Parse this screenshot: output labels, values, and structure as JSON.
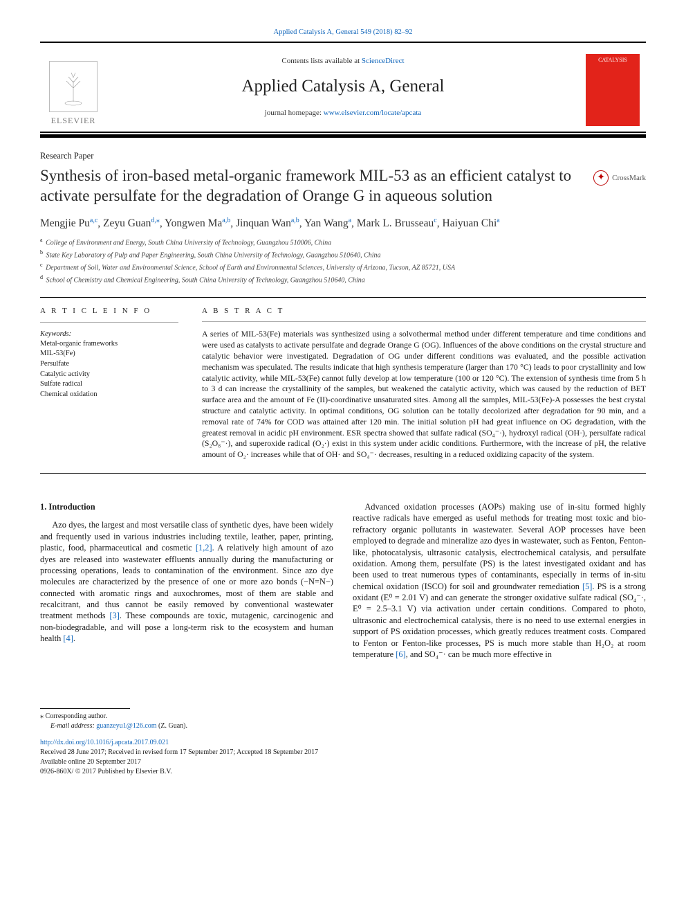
{
  "header": {
    "citation": "Applied Catalysis A, General 549 (2018) 82–92",
    "contents_prefix": "Contents lists available at ",
    "contents_link": "ScienceDirect",
    "journal": "Applied Catalysis A, General",
    "homepage_prefix": "journal homepage: ",
    "homepage_link": "www.elsevier.com/locate/apcata",
    "publisher_word": "ELSEVIER",
    "cover_text": "CATALYSIS"
  },
  "paper_type": "Research Paper",
  "title": "Synthesis of iron-based metal-organic framework MIL-53 as an efficient catalyst to activate persulfate for the degradation of Orange G in aqueous solution",
  "crossmark": "CrossMark",
  "authors_html": "Mengjie Pu<span class='sup'>a,c</span>, Zeyu Guan<span class='sup'>d,</span><span class='sup'>⁎</span>, Yongwen Ma<span class='sup'>a,b</span>, Jinquan Wan<span class='sup'>a,b</span>, Yan Wang<span class='sup'>a</span>, Mark L. Brusseau<span class='sup'>c</span>, Haiyuan Chi<span class='sup'>a</span>",
  "affiliations": [
    {
      "sup": "a",
      "text": "College of Environment and Energy, South China University of Technology, Guangzhou 510006, China"
    },
    {
      "sup": "b",
      "text": "State Key Laboratory of Pulp and Paper Engineering, South China University of Technology, Guangzhou 510640, China"
    },
    {
      "sup": "c",
      "text": "Department of Soil, Water and Environmental Science, School of Earth and Environmental Sciences, University of Arizona, Tucson, AZ 85721, USA"
    },
    {
      "sup": "d",
      "text": "School of Chemistry and Chemical Engineering, South China University of Technology, Guangzhou 510640, China"
    }
  ],
  "article_info": {
    "heading": "A R T I C L E  I N F O",
    "kw_label": "Keywords:",
    "keywords": [
      "Metal-organic frameworks",
      "MIL-53(Fe)",
      "Persulfate",
      "Catalytic activity",
      "Sulfate radical",
      "Chemical oxidation"
    ]
  },
  "abstract": {
    "heading": "A B S T R A C T",
    "text": "A series of MIL-53(Fe) materials was synthesized using a solvothermal method under different temperature and time conditions and were used as catalysts to activate persulfate and degrade Orange G (OG). Influences of the above conditions on the crystal structure and catalytic behavior were investigated. Degradation of OG under different conditions was evaluated, and the possible activation mechanism was speculated. The results indicate that high synthesis temperature (larger than 170 °C) leads to poor crystallinity and low catalytic activity, while MIL-53(Fe) cannot fully develop at low temperature (100 or 120 °C). The extension of synthesis time from 5 h to 3 d can increase the crystallinity of the samples, but weakened the catalytic activity, which was caused by the reduction of BET surface area and the amount of Fe (II)-coordinative unsaturated sites. Among all the samples, MIL-53(Fe)-A possesses the best crystal structure and catalytic activity. In optimal conditions, OG solution can be totally decolorized after degradation for 90 min, and a removal rate of 74% for COD was attained after 120 min. The initial solution pH had great influence on OG degradation, with the greatest removal in acidic pH environment. ESR spectra showed that sulfate radical (SO₄⁻·), hydroxyl radical (OH·), persulfate radical (S₂O₈⁻·), and superoxide radical (O₂·) exist in this system under acidic conditions. Furthermore, with the increase of pH, the relative amount of O₂· increases while that of OH· and SO₄⁻· decreases, resulting in a reduced oxidizing capacity of the system."
  },
  "section1": {
    "heading": "1. Introduction",
    "paras_html": [
      "Azo dyes, the largest and most versatile class of synthetic dyes, have been widely and frequently used in various industries including textile, leather, paper, printing, plastic, food, pharmaceutical and cosmetic <a class='ref' href='#'>[1,2]</a>. A relatively high amount of azo dyes are released into wastewater effluents annually during the manufacturing or processing operations, leads to contamination of the environment. Since azo dye molecules are characterized by the presence of one or more azo bonds (−N=N−) connected with aromatic rings and auxochromes, most of them are stable and recalcitrant, and thus cannot be easily removed by conventional wastewater treatment methods <a class='ref' href='#'>[3]</a>. These compounds are toxic, mutagenic, carcinogenic and non-biodegradable, and will pose a long-term risk to the ecosystem and human health <a class='ref' href='#'>[4]</a>.",
      "Advanced oxidation processes (AOPs) making use of in-situ formed highly reactive radicals have emerged as useful methods for treating most toxic and bio-refractory organic pollutants in wastewater. Several AOP processes have been employed to degrade and mineralize azo dyes in wastewater, such as Fenton, Fenton-like, photocatalysis, ultrasonic catalysis, electrochemical catalysis, and persulfate oxidation. Among them, persulfate (PS) is the latest investigated oxidant and has been used to treat numerous types of contaminants, especially in terms of in-situ chemical oxidation (ISCO) for soil and groundwater remediation <a class='ref' href='#'>[5]</a>. PS is a strong oxidant (E⁰ = 2.01 V) and can generate the stronger oxidative sulfate radical (SO₄⁻·, E⁰ = 2.5–3.1 V) via activation under certain conditions. Compared to photo, ultrasonic and electrochemical catalysis, there is no need to use external energies in support of PS oxidation processes, which greatly reduces treatment costs. Compared to Fenton or Fenton-like processes, PS is much more stable than H₂O₂ at room temperature <a class='ref' href='#'>[6]</a>, and SO₄⁻· can be much more effective in"
    ]
  },
  "footer": {
    "corr": "⁎ Corresponding author.",
    "email_label": "E-mail address: ",
    "email": "guanzeyu1@126.com",
    "email_suffix": " (Z. Guan).",
    "doi": "http://dx.doi.org/10.1016/j.apcata.2017.09.021",
    "dates": "Received 28 June 2017; Received in revised form 17 September 2017; Accepted 18 September 2017",
    "online": "Available online 20 September 2017",
    "copyright": "0926-860X/ © 2017 Published by Elsevier B.V."
  },
  "colors": {
    "link": "#1166bb",
    "rule": "#000000",
    "cover_bg": "#e2231a"
  }
}
